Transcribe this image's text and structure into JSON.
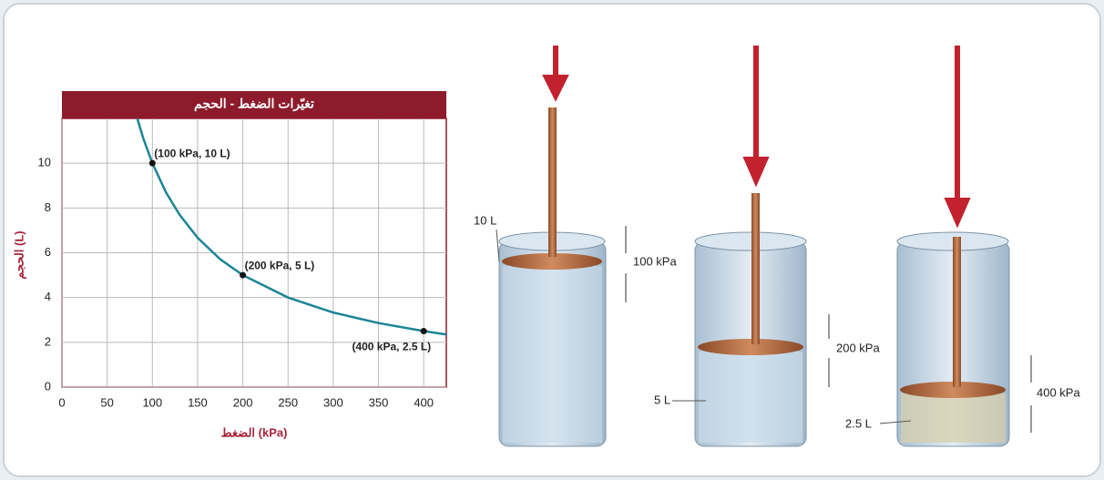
{
  "chart_data": {
    "type": "line",
    "title": "تغيّرات الضغط - الحجم",
    "x_label": "الضغط (kPa)",
    "y_label": "الحجم (L)",
    "xlim": [
      0,
      425
    ],
    "ylim": [
      0,
      12
    ],
    "xticks": [
      0,
      50,
      100,
      150,
      200,
      250,
      300,
      350,
      400
    ],
    "yticks": [
      0,
      2,
      4,
      6,
      8,
      10
    ],
    "grid": true,
    "series": [
      {
        "color": "#1c8596",
        "x": [
          83.3,
          90,
          100,
          115,
          130,
          150,
          175,
          200,
          250,
          300,
          350,
          400,
          425
        ],
        "values": [
          12,
          11.1,
          10,
          8.7,
          7.7,
          6.67,
          5.71,
          5,
          4,
          3.33,
          2.86,
          2.5,
          2.35
        ]
      }
    ],
    "points": {
      "x": [
        100,
        200,
        400
      ],
      "values": [
        10,
        5,
        2.5
      ],
      "labels": [
        "(100 kPa, 10 L)",
        "(200 kPa, 5 L)",
        "(400 kPa, 2.5 L)"
      ]
    }
  },
  "diagram": {
    "cylinders": [
      {
        "volume": "10 L",
        "pressure": "100 kPa"
      },
      {
        "volume": "5 L",
        "pressure": "200 kPa"
      },
      {
        "volume": "2.5 L",
        "pressure": "400 kPa"
      }
    ]
  }
}
